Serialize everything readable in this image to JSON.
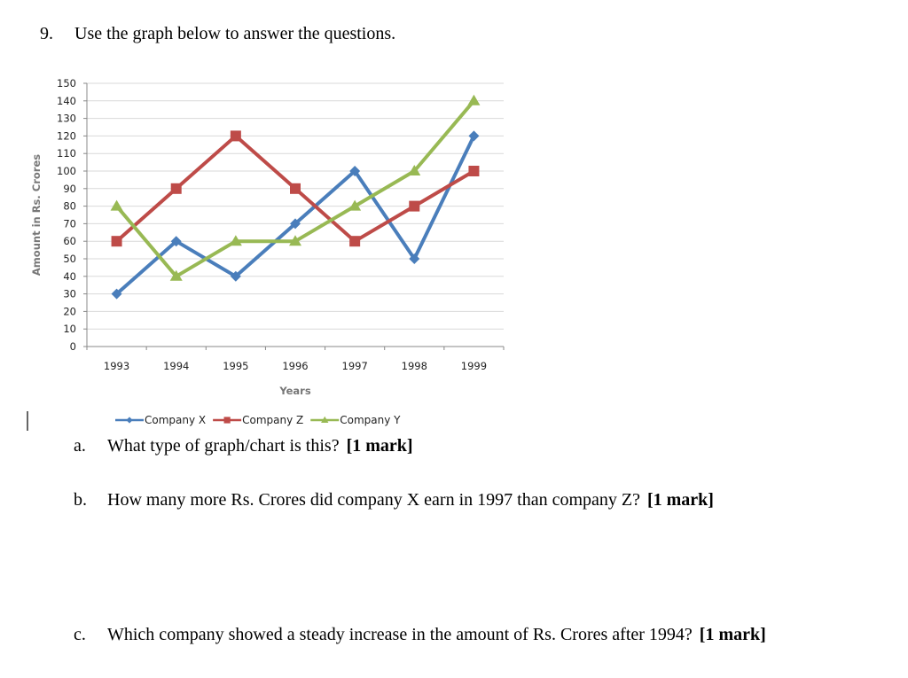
{
  "question": {
    "number": "9.",
    "text": "Use the graph below to answer the questions."
  },
  "chart_data": {
    "type": "line",
    "x_label": "Years",
    "y_label": "Amount in Rs. Crores",
    "categories": [
      "1993",
      "1994",
      "1995",
      "1996",
      "1997",
      "1998",
      "1999"
    ],
    "series": [
      {
        "name": "Company X",
        "color": "#4a7ebb",
        "marker": "diamond",
        "values": [
          30,
          60,
          40,
          70,
          100,
          50,
          120
        ]
      },
      {
        "name": "Company Z",
        "color": "#be4b48",
        "marker": "square",
        "values": [
          60,
          90,
          120,
          90,
          60,
          80,
          100
        ]
      },
      {
        "name": "Company Y",
        "color": "#98b954",
        "marker": "triangle",
        "values": [
          80,
          40,
          60,
          60,
          80,
          100,
          140
        ]
      }
    ],
    "ylim": [
      0,
      150
    ],
    "yticks": [
      0,
      10,
      20,
      30,
      40,
      50,
      60,
      70,
      80,
      90,
      100,
      110,
      120,
      130,
      140,
      150
    ],
    "grid": true,
    "legend": "bottom"
  },
  "parts": [
    {
      "label": "a.",
      "text": "What type of graph/chart is this?",
      "mark": "[1 mark]"
    },
    {
      "label": "b.",
      "text": "How many more Rs. Crores did company X earn in 1997 than company Z?",
      "mark": "[1 mark]"
    },
    {
      "label": "c.",
      "text": "Which company showed a steady increase in the amount of Rs. Crores after 1994?",
      "mark": "[1 mark]"
    }
  ]
}
